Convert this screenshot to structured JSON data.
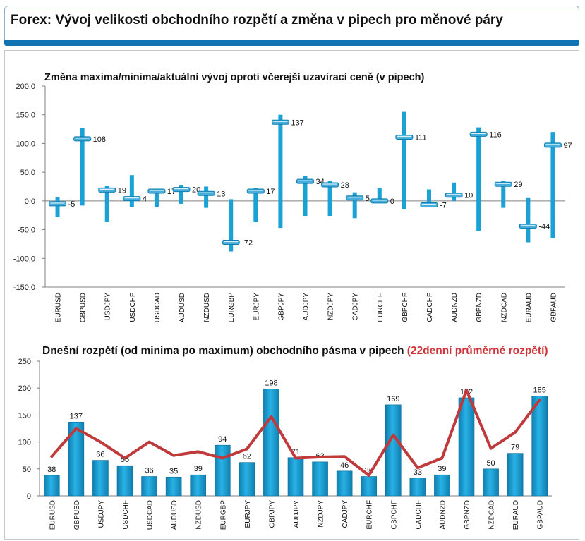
{
  "page": {
    "title": "Forex: Vývoj velikosti obchodního rozpětí a změna v pipech pro měnové páry"
  },
  "colors": {
    "bar": "#1aa1d6",
    "bar_dark": "#0f7fb0",
    "avg_line": "#c0393b",
    "header_bar": "#0f73b1",
    "title_highlight": "#d03438"
  },
  "chart_data": [
    {
      "type": "range",
      "title": "Změna maxima/minima/aktuální vývoj oproti včerejší uzavírací ceně (v pipech)",
      "categories": [
        "EURUSD",
        "GBPUSD",
        "USDJPY",
        "USDCHF",
        "USDCAD",
        "AUDUSD",
        "NZDUSD",
        "EURGBP",
        "EURJPY",
        "GBPJPY",
        "AUDJPY",
        "NZDJPY",
        "CADJPY",
        "EURCHF",
        "GBPCHF",
        "CADCHF",
        "AUDNZD",
        "GBPNZD",
        "NZDCAD",
        "EURAUD",
        "GBPAUD"
      ],
      "high": [
        7,
        127,
        26,
        45,
        20,
        28,
        25,
        3,
        22,
        150,
        43,
        35,
        15,
        22,
        155,
        20,
        32,
        128,
        35,
        5,
        120
      ],
      "low": [
        -28,
        -8,
        -37,
        -10,
        -10,
        -5,
        -12,
        -88,
        -37,
        -47,
        -26,
        -26,
        -30,
        -3,
        -14,
        -3,
        0,
        -52,
        -12,
        -72,
        -65
      ],
      "current": [
        -5,
        108,
        19,
        4,
        17,
        20,
        13,
        -72,
        17,
        137,
        34,
        28,
        5,
        0,
        111,
        -7,
        10,
        116,
        29,
        -44,
        97
      ],
      "value_labels": [
        "-5",
        "108",
        "19",
        "4",
        "17",
        "20",
        "13",
        "-72",
        "17",
        "137",
        "34",
        "28",
        "5",
        "0",
        "111",
        "-7",
        "10",
        "116",
        "29",
        "-44",
        "97"
      ],
      "ylim": [
        -150,
        200
      ],
      "yticks": [
        "-150.0",
        "-100.0",
        "-50.0",
        "0.0",
        "50.0",
        "100.0",
        "150.0",
        "200.0"
      ],
      "grid": false
    },
    {
      "type": "bar",
      "title": "Dnešní rozpětí (od minima po maximum) obchodního pásma v pipech",
      "title_highlight": "(22denní průměrné rozpětí)",
      "categories": [
        "EURUSD",
        "GBPUSD",
        "USDJPY",
        "USDCHF",
        "USDCAD",
        "AUDUSD",
        "NZDUSD",
        "EURGBP",
        "EURJPY",
        "GBPJPY",
        "AUDJPY",
        "NZDJPY",
        "CADJPY",
        "EURCHF",
        "GBPCHF",
        "CADCHF",
        "AUDNZD",
        "GBPNZD",
        "NZDCAD",
        "EURAUD",
        "GBPAUD"
      ],
      "values": [
        38,
        137,
        66,
        56,
        36,
        35,
        39,
        94,
        62,
        198,
        71,
        63,
        46,
        36,
        169,
        33,
        39,
        182,
        50,
        79,
        185
      ],
      "value_labels": [
        "38",
        "137",
        "66",
        "56",
        "36",
        "35",
        "39",
        "94",
        "62",
        "198",
        "71",
        "63",
        "46",
        "36",
        "169",
        "33",
        "39",
        "182",
        "50",
        "79",
        "185"
      ],
      "average": [
        73,
        125,
        100,
        70,
        100,
        75,
        82,
        70,
        87,
        147,
        70,
        72,
        73,
        38,
        113,
        52,
        70,
        196,
        88,
        118,
        178
      ],
      "ylim": [
        0,
        250
      ],
      "yticks": [
        "0",
        "50",
        "100",
        "150",
        "200",
        "250"
      ],
      "grid": false
    }
  ]
}
